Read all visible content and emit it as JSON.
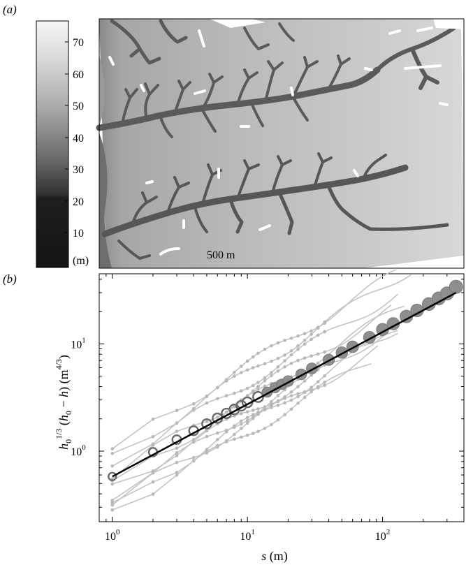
{
  "panel_a": {
    "label": "(a)",
    "colorbar": {
      "ticks": [
        "70",
        "60",
        "50",
        "40",
        "30",
        "20",
        "10"
      ],
      "unit": "(m)"
    },
    "scale_bar_label": "500 m"
  },
  "panel_b": {
    "label": "(b)"
  },
  "chart_data": {
    "type": "scatter",
    "scale": "log-log",
    "xlabel": "s (m)",
    "ylabel": "h0^(1/3) (h0 − h) (m^(4/3))",
    "xlim": [
      0.8,
      400
    ],
    "ylim": [
      0.22,
      45
    ],
    "x_ticks": [
      {
        "value": 1,
        "base": "10",
        "exp": "0"
      },
      {
        "value": 10,
        "base": "10",
        "exp": "1"
      },
      {
        "value": 100,
        "base": "10",
        "exp": "2"
      }
    ],
    "y_ticks": [
      {
        "value": 1,
        "base": "10",
        "exp": "0"
      },
      {
        "value": 10,
        "base": "10",
        "exp": "1"
      }
    ],
    "fit_line": {
      "x": [
        1,
        350
      ],
      "y": [
        0.58,
        30
      ]
    },
    "mean_series": {
      "x": [
        1,
        2,
        3,
        4,
        5,
        6,
        7,
        8,
        9,
        10,
        12,
        14,
        16,
        18,
        20,
        25,
        30,
        40,
        50,
        60,
        80,
        100,
        120,
        150,
        180,
        220,
        260,
        300,
        350
      ],
      "y": [
        0.58,
        0.98,
        1.28,
        1.55,
        1.8,
        2.03,
        2.25,
        2.45,
        2.65,
        2.85,
        3.2,
        3.55,
        3.9,
        4.2,
        4.5,
        5.2,
        5.9,
        7.1,
        8.3,
        9.4,
        11.5,
        13.6,
        15.4,
        18.0,
        20.5,
        23.5,
        26.5,
        29.5,
        34.0
      ]
    },
    "channels": [
      {
        "y1": 1.05,
        "p": 0.78,
        "xmax": 150
      },
      {
        "y1": 0.85,
        "p": 0.8,
        "xmax": 170
      },
      {
        "y1": 0.75,
        "p": 0.76,
        "xmax": 140
      },
      {
        "y1": 0.62,
        "p": 0.74,
        "xmax": 120
      },
      {
        "y1": 0.5,
        "p": 0.77,
        "xmax": 160
      },
      {
        "y1": 0.45,
        "p": 0.71,
        "xmax": 130
      },
      {
        "y1": 0.38,
        "p": 0.76,
        "xmax": 110
      },
      {
        "y1": 0.34,
        "p": 0.72,
        "xmax": 100
      },
      {
        "y1": 0.3,
        "p": 0.79,
        "xmax": 140
      },
      {
        "y1": 0.27,
        "p": 0.74,
        "xmax": 90
      }
    ]
  }
}
